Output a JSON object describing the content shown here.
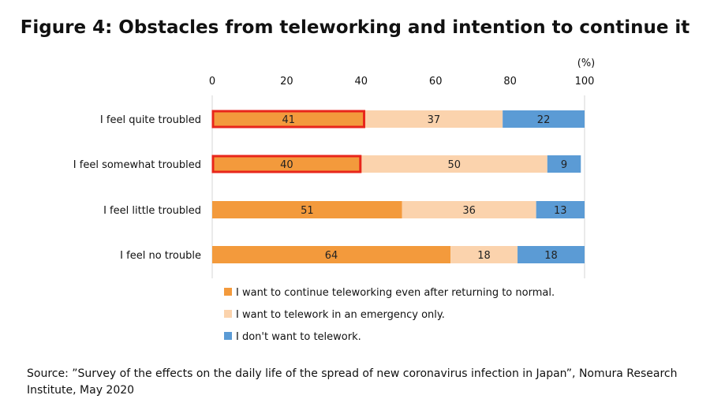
{
  "title": "Figure 4: Obstacles from teleworking and intention to continue it",
  "source": "Source: ”Survey of the effects on the daily life of the spread of new coronavirus infection in Japan”, Nomura Research Institute, May 2020",
  "chart_data": {
    "type": "bar",
    "orientation": "horizontal",
    "stacked": true,
    "unit_label": "(%)",
    "xlim": [
      0,
      100
    ],
    "x_ticks": [
      "0",
      "20",
      "40",
      "60",
      "80",
      "100"
    ],
    "categories": [
      "I feel quite troubled",
      "I feel somewhat troubled",
      "I feel little troubled",
      "I feel no trouble"
    ],
    "series": [
      {
        "name": "I want to continue teleworking even after returning to normal.",
        "color": "#f39a3c",
        "values": [
          41,
          40,
          51,
          64
        ]
      },
      {
        "name": "I want to telework in an emergency only.",
        "color": "#fbd3ad",
        "values": [
          37,
          50,
          36,
          18
        ]
      },
      {
        "name": "I don't want to telework.",
        "color": "#5b9bd5",
        "values": [
          22,
          9,
          13,
          18
        ]
      }
    ],
    "highlighted": [
      {
        "category": "I feel quite troubled",
        "series": 0
      },
      {
        "category": "I feel somewhat troubled",
        "series": 0
      }
    ],
    "highlight_color": "#e8261b",
    "legend_position": "bottom",
    "grid": false
  }
}
